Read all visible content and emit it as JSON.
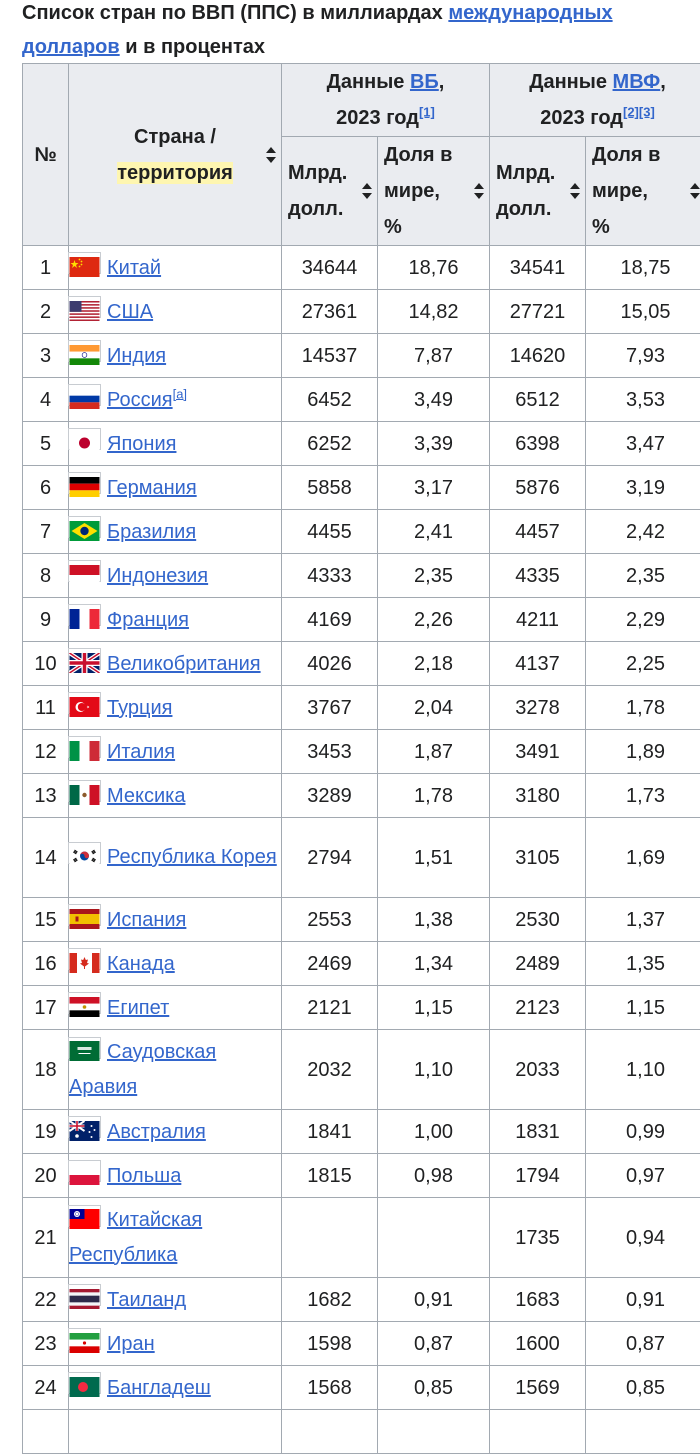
{
  "caption": {
    "text_before": "Список стран по ВВП (ППС) в миллиардах ",
    "link": "международных долларов",
    "text_after": " и в процентах"
  },
  "headers": {
    "num": "№",
    "country_line1": "Страна /",
    "country_line2": "территория",
    "wb_prefix": "Данные ",
    "wb_link": "ВБ",
    "wb_suffix": ",",
    "wb_year": "2023 год",
    "wb_refs": "[1]",
    "imf_prefix": "Данные ",
    "imf_link": "МВФ",
    "imf_suffix": ",",
    "imf_year": "2023 год",
    "imf_refs": "[2][3]",
    "bln_line1": "Млрд.",
    "bln_line2": "долл.",
    "share_line1": "Доля в",
    "share_line2": "мире, %"
  },
  "rows": [
    {
      "n": "1",
      "country": "Китай",
      "flag": "china",
      "wb": "34644",
      "wb_share": "18,76",
      "imf": "34541",
      "imf_share": "18,75"
    },
    {
      "n": "2",
      "country": "США",
      "flag": "usa",
      "wb": "27361",
      "wb_share": "14,82",
      "imf": "27721",
      "imf_share": "15,05"
    },
    {
      "n": "3",
      "country": "Индия",
      "flag": "india",
      "wb": "14537",
      "wb_share": "7,87",
      "imf": "14620",
      "imf_share": "7,93"
    },
    {
      "n": "4",
      "country": "Россия",
      "note": "[a]",
      "flag": "russia",
      "wb": "6452",
      "wb_share": "3,49",
      "imf": "6512",
      "imf_share": "3,53"
    },
    {
      "n": "5",
      "country": "Япония",
      "flag": "japan",
      "wb": "6252",
      "wb_share": "3,39",
      "imf": "6398",
      "imf_share": "3,47"
    },
    {
      "n": "6",
      "country": "Германия",
      "flag": "germany",
      "wb": "5858",
      "wb_share": "3,17",
      "imf": "5876",
      "imf_share": "3,19"
    },
    {
      "n": "7",
      "country": "Бразилия",
      "flag": "brazil",
      "wb": "4455",
      "wb_share": "2,41",
      "imf": "4457",
      "imf_share": "2,42"
    },
    {
      "n": "8",
      "country": "Индонезия",
      "flag": "indonesia",
      "wb": "4333",
      "wb_share": "2,35",
      "imf": "4335",
      "imf_share": "2,35"
    },
    {
      "n": "9",
      "country": "Франция",
      "flag": "france",
      "wb": "4169",
      "wb_share": "2,26",
      "imf": "4211",
      "imf_share": "2,29"
    },
    {
      "n": "10",
      "country": "Великобритания",
      "flag": "uk",
      "wb": "4026",
      "wb_share": "2,18",
      "imf": "4137",
      "imf_share": "2,25"
    },
    {
      "n": "11",
      "country": "Турция",
      "flag": "turkey",
      "wb": "3767",
      "wb_share": "2,04",
      "imf": "3278",
      "imf_share": "1,78"
    },
    {
      "n": "12",
      "country": "Италия",
      "flag": "italy",
      "wb": "3453",
      "wb_share": "1,87",
      "imf": "3491",
      "imf_share": "1,89"
    },
    {
      "n": "13",
      "country": "Мексика",
      "flag": "mexico",
      "wb": "3289",
      "wb_share": "1,78",
      "imf": "3180",
      "imf_share": "1,73"
    },
    {
      "n": "14",
      "country": "Республика Корея",
      "flag": "korea",
      "wb": "2794",
      "wb_share": "1,51",
      "imf": "3105",
      "imf_share": "1,69",
      "tall": true
    },
    {
      "n": "15",
      "country": "Испания",
      "flag": "spain",
      "wb": "2553",
      "wb_share": "1,38",
      "imf": "2530",
      "imf_share": "1,37"
    },
    {
      "n": "16",
      "country": "Канада",
      "flag": "canada",
      "wb": "2469",
      "wb_share": "1,34",
      "imf": "2489",
      "imf_share": "1,35"
    },
    {
      "n": "17",
      "country": "Египет",
      "flag": "egypt",
      "wb": "2121",
      "wb_share": "1,15",
      "imf": "2123",
      "imf_share": "1,15"
    },
    {
      "n": "18",
      "country": "Саудовская Аравия",
      "flag": "saudi",
      "wb": "2032",
      "wb_share": "1,10",
      "imf": "2033",
      "imf_share": "1,10",
      "tall": true
    },
    {
      "n": "19",
      "country": "Австралия",
      "flag": "australia",
      "wb": "1841",
      "wb_share": "1,00",
      "imf": "1831",
      "imf_share": "0,99"
    },
    {
      "n": "20",
      "country": "Польша",
      "flag": "poland",
      "wb": "1815",
      "wb_share": "0,98",
      "imf": "1794",
      "imf_share": "0,97"
    },
    {
      "n": "21",
      "country": "Китайская Республика",
      "flag": "taiwan",
      "wb": "",
      "wb_share": "",
      "imf": "1735",
      "imf_share": "0,94",
      "tall": true
    },
    {
      "n": "22",
      "country": "Таиланд",
      "flag": "thailand",
      "wb": "1682",
      "wb_share": "0,91",
      "imf": "1683",
      "imf_share": "0,91"
    },
    {
      "n": "23",
      "country": "Иран",
      "flag": "iran",
      "wb": "1598",
      "wb_share": "0,87",
      "imf": "1600",
      "imf_share": "0,87"
    },
    {
      "n": "24",
      "country": "Бангладеш",
      "flag": "bangladesh",
      "wb": "1568",
      "wb_share": "0,85",
      "imf": "1569",
      "imf_share": "0,85"
    },
    {
      "n": "",
      "country": "",
      "flag": "",
      "wb": "",
      "wb_share": "",
      "imf": "",
      "imf_share": ""
    }
  ]
}
